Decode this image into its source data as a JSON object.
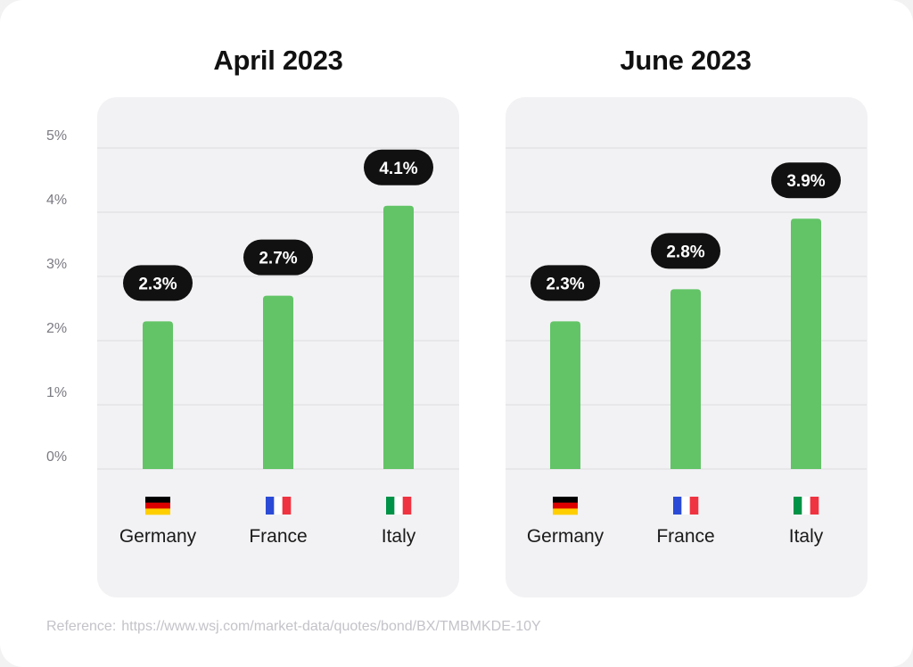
{
  "reference": {
    "label": "Reference:",
    "url": "https://www.wsj.com/market-data/quotes/bond/BX/TMBMKDE-10Y"
  },
  "y_ticks": [
    "0%",
    "1%",
    "2%",
    "3%",
    "4%",
    "5%"
  ],
  "colors": {
    "bar": "#62c466",
    "badge": "#111111",
    "badge_text": "#ffffff",
    "grid": "#dcdce0",
    "tick": "#7a7a82",
    "country": "#1a1a1a"
  },
  "chart_data": [
    {
      "type": "bar",
      "title": "April 2023",
      "categories": [
        "Germany",
        "France",
        "Italy"
      ],
      "values": [
        2.3,
        2.7,
        4.1
      ],
      "labels": [
        "2.3%",
        "2.7%",
        "4.1%"
      ],
      "ylim": [
        0,
        5
      ],
      "grid": true
    },
    {
      "type": "bar",
      "title": "June 2023",
      "categories": [
        "Germany",
        "France",
        "Italy"
      ],
      "values": [
        2.3,
        2.8,
        3.9
      ],
      "labels": [
        "2.3%",
        "2.8%",
        "3.9%"
      ],
      "ylim": [
        0,
        5
      ],
      "grid": true
    }
  ],
  "flags": {
    "Germany": {
      "icon": "germany-flag-icon",
      "colors": [
        "#000000",
        "#dd0000",
        "#ffce00"
      ],
      "orientation": "horizontal"
    },
    "France": {
      "icon": "france-flag-icon",
      "colors": [
        "#2b4bd6",
        "#ffffff",
        "#ef3340"
      ],
      "orientation": "vertical"
    },
    "Italy": {
      "icon": "italy-flag-icon",
      "colors": [
        "#009246",
        "#ffffff",
        "#ef3340"
      ],
      "orientation": "vertical"
    }
  }
}
